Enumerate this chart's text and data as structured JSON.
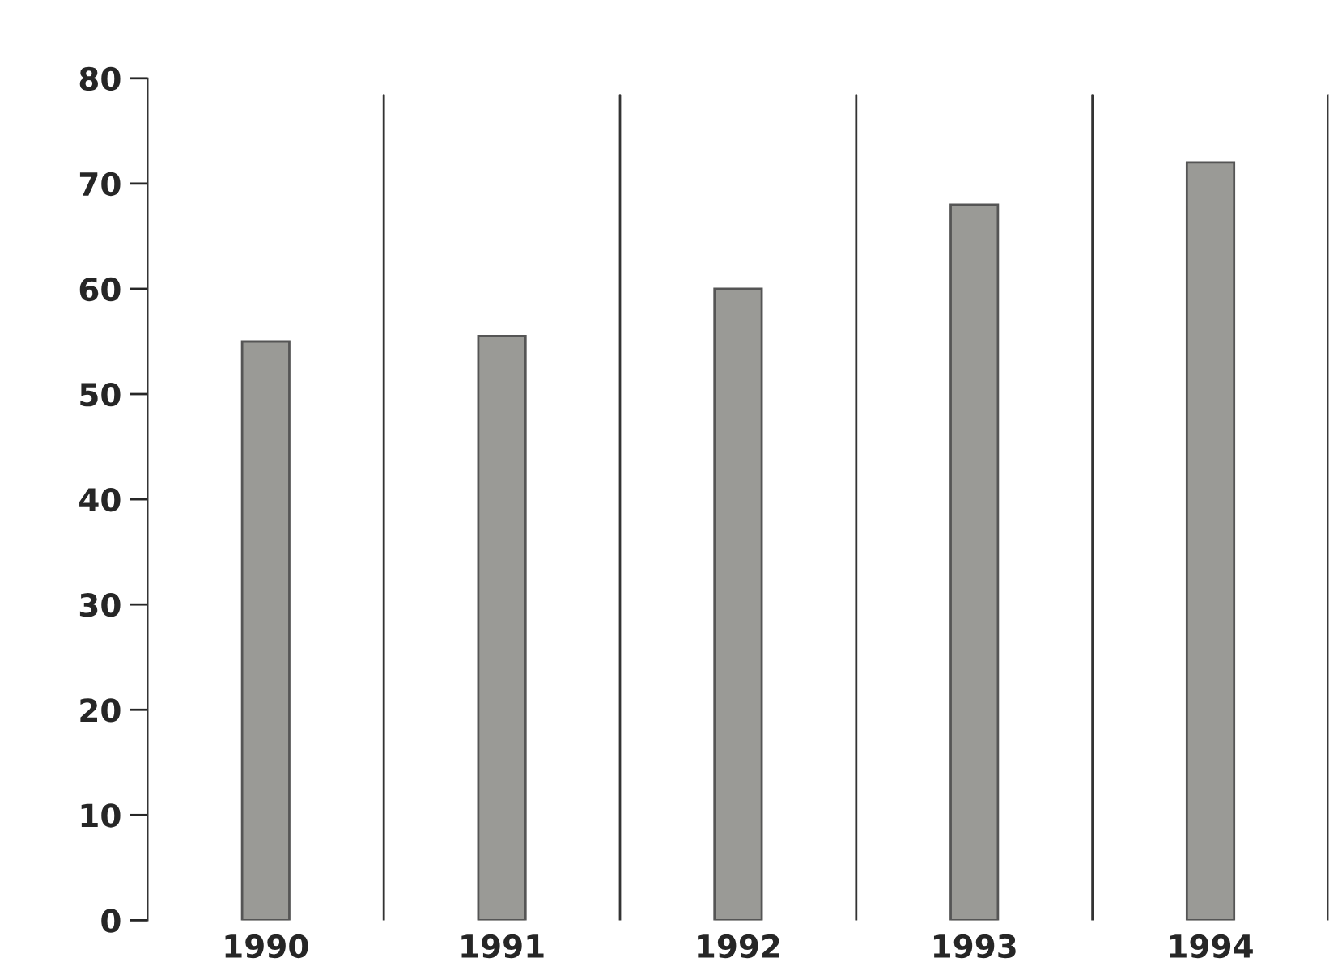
{
  "chart_data": {
    "type": "bar",
    "categories": [
      "1990",
      "1991",
      "1992",
      "1993",
      "1994"
    ],
    "values": [
      55,
      55.5,
      60,
      68,
      72
    ],
    "color": "#9a9a96",
    "ylim": [
      0,
      80
    ],
    "yticks": [
      0,
      10,
      20,
      30,
      40,
      50,
      60,
      70,
      80
    ],
    "grid": "x"
  }
}
